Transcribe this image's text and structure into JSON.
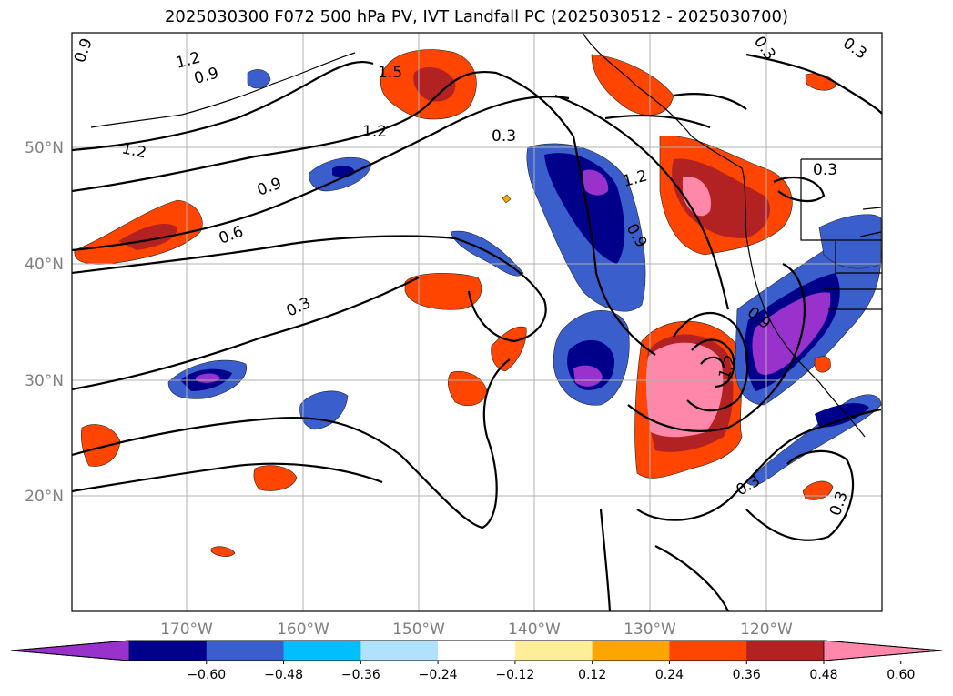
{
  "title": "2025030300 F072 500 hPa PV, IVT Landfall PC (2025030512 - 2025030700)",
  "map": {
    "lat_labels": [
      "50°N",
      "40°N",
      "30°N",
      "20°N"
    ],
    "lon_labels": [
      "170°W",
      "160°W",
      "150°W",
      "140°W",
      "130°W",
      "120°W"
    ],
    "contour_labels": [
      "0.9",
      "1.2",
      "0.9",
      "1.5",
      "1.2",
      "1.2",
      "0.9",
      "0.6",
      "0.3",
      "0.3",
      "1.2",
      "0.9",
      "0.3",
      "0.9",
      "1.2",
      "0.3",
      "0.3",
      "0.3",
      "0.3"
    ]
  },
  "colorbar": {
    "ticks": [
      "−0.60",
      "−0.48",
      "−0.36",
      "−0.24",
      "−0.12",
      "0.12",
      "0.24",
      "0.36",
      "0.48",
      "0.60"
    ],
    "colors": [
      "#9932cc",
      "#00008b",
      "#3a5fcd",
      "#00bfff",
      "#b0e2ff",
      "#ffffff",
      "#ffee99",
      "#ffa500",
      "#ff4500",
      "#b22222",
      "#ff88aa"
    ]
  }
}
